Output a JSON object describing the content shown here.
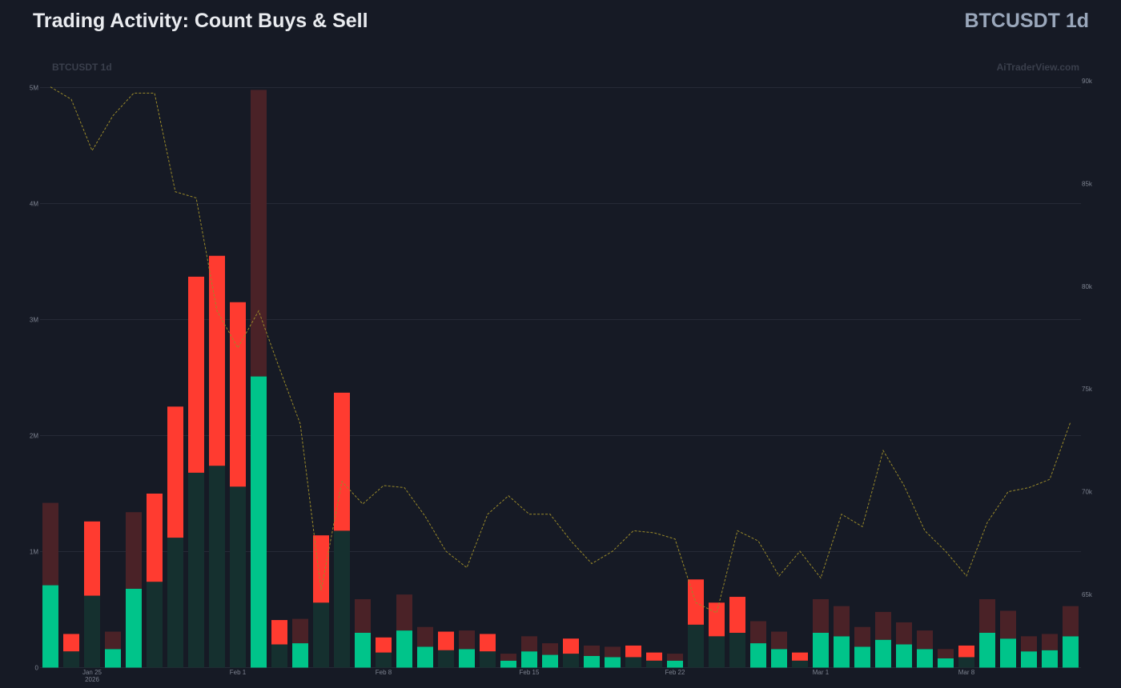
{
  "header": {
    "title": "Trading Activity: Count Buys & Sell",
    "symbol": "BTCUSDT 1d"
  },
  "watermark": {
    "symbol": "BTCUSDT 1d",
    "brand": "AiTraderView.com"
  },
  "colors": {
    "background": "#161a25",
    "grid": "#262a36",
    "buy_active": "#00c48a",
    "buy_dim": "#15302f",
    "sell_active": "#ff3b30",
    "sell_dim": "#4a2227",
    "price_line": "#9a8a2a"
  },
  "chart_data": {
    "type": "bar",
    "stacked": true,
    "x_tick_labels": [
      {
        "label": "Jan 25",
        "sublabel": "2026",
        "index": 2
      },
      {
        "label": "Feb 1",
        "sublabel": "",
        "index": 9
      },
      {
        "label": "Feb 8",
        "sublabel": "",
        "index": 16
      },
      {
        "label": "Feb 15",
        "sublabel": "",
        "index": 23
      },
      {
        "label": "Feb 22",
        "sublabel": "",
        "index": 30
      },
      {
        "label": "Mar 1",
        "sublabel": "",
        "index": 37
      },
      {
        "label": "Mar 8",
        "sublabel": "",
        "index": 44
      }
    ],
    "left_axis": {
      "ylim": [
        0,
        5000000
      ],
      "ticks": [
        {
          "v": 0,
          "label": "0"
        },
        {
          "v": 1000000,
          "label": "1M"
        },
        {
          "v": 2000000,
          "label": "2M"
        },
        {
          "v": 3000000,
          "label": "3M"
        },
        {
          "v": 4000000,
          "label": "4M"
        },
        {
          "v": 5000000,
          "label": "5M"
        }
      ]
    },
    "right_axis": {
      "ticks": [
        {
          "v": 65000,
          "label": "65k"
        },
        {
          "v": 70000,
          "label": "70k"
        },
        {
          "v": 75000,
          "label": "75k"
        },
        {
          "v": 80000,
          "label": "80k"
        },
        {
          "v": 85000,
          "label": "85k"
        },
        {
          "v": 90000,
          "label": "90k"
        }
      ]
    },
    "bars": [
      {
        "buy": 710000,
        "sell": 710000,
        "buy_active": true,
        "sell_active": false
      },
      {
        "buy": 140000,
        "sell": 150000,
        "buy_active": false,
        "sell_active": true
      },
      {
        "buy": 620000,
        "sell": 640000,
        "buy_active": false,
        "sell_active": true
      },
      {
        "buy": 160000,
        "sell": 150000,
        "buy_active": true,
        "sell_active": false
      },
      {
        "buy": 680000,
        "sell": 660000,
        "buy_active": true,
        "sell_active": false
      },
      {
        "buy": 740000,
        "sell": 760000,
        "buy_active": false,
        "sell_active": true
      },
      {
        "buy": 1120000,
        "sell": 1130000,
        "buy_active": false,
        "sell_active": true
      },
      {
        "buy": 1680000,
        "sell": 1690000,
        "buy_active": false,
        "sell_active": true
      },
      {
        "buy": 1740000,
        "sell": 1810000,
        "buy_active": false,
        "sell_active": true
      },
      {
        "buy": 1560000,
        "sell": 1590000,
        "buy_active": false,
        "sell_active": true
      },
      {
        "buy": 2510000,
        "sell": 2470000,
        "buy_active": true,
        "sell_active": false
      },
      {
        "buy": 200000,
        "sell": 210000,
        "buy_active": false,
        "sell_active": true
      },
      {
        "buy": 210000,
        "sell": 210000,
        "buy_active": true,
        "sell_active": false
      },
      {
        "buy": 560000,
        "sell": 580000,
        "buy_active": false,
        "sell_active": true
      },
      {
        "buy": 1180000,
        "sell": 1190000,
        "buy_active": false,
        "sell_active": true
      },
      {
        "buy": 300000,
        "sell": 290000,
        "buy_active": true,
        "sell_active": false
      },
      {
        "buy": 130000,
        "sell": 130000,
        "buy_active": false,
        "sell_active": true
      },
      {
        "buy": 320000,
        "sell": 310000,
        "buy_active": true,
        "sell_active": false
      },
      {
        "buy": 180000,
        "sell": 170000,
        "buy_active": true,
        "sell_active": false
      },
      {
        "buy": 150000,
        "sell": 160000,
        "buy_active": false,
        "sell_active": true
      },
      {
        "buy": 160000,
        "sell": 160000,
        "buy_active": true,
        "sell_active": false
      },
      {
        "buy": 140000,
        "sell": 150000,
        "buy_active": false,
        "sell_active": true
      },
      {
        "buy": 60000,
        "sell": 60000,
        "buy_active": true,
        "sell_active": false
      },
      {
        "buy": 140000,
        "sell": 130000,
        "buy_active": true,
        "sell_active": false
      },
      {
        "buy": 110000,
        "sell": 100000,
        "buy_active": true,
        "sell_active": false
      },
      {
        "buy": 120000,
        "sell": 130000,
        "buy_active": false,
        "sell_active": true
      },
      {
        "buy": 100000,
        "sell": 90000,
        "buy_active": true,
        "sell_active": false
      },
      {
        "buy": 90000,
        "sell": 90000,
        "buy_active": true,
        "sell_active": false
      },
      {
        "buy": 90000,
        "sell": 100000,
        "buy_active": false,
        "sell_active": true
      },
      {
        "buy": 60000,
        "sell": 70000,
        "buy_active": false,
        "sell_active": true
      },
      {
        "buy": 60000,
        "sell": 60000,
        "buy_active": true,
        "sell_active": false
      },
      {
        "buy": 370000,
        "sell": 390000,
        "buy_active": false,
        "sell_active": true
      },
      {
        "buy": 270000,
        "sell": 290000,
        "buy_active": false,
        "sell_active": true
      },
      {
        "buy": 300000,
        "sell": 310000,
        "buy_active": false,
        "sell_active": true
      },
      {
        "buy": 210000,
        "sell": 190000,
        "buy_active": true,
        "sell_active": false
      },
      {
        "buy": 160000,
        "sell": 150000,
        "buy_active": true,
        "sell_active": false
      },
      {
        "buy": 60000,
        "sell": 70000,
        "buy_active": false,
        "sell_active": true
      },
      {
        "buy": 300000,
        "sell": 290000,
        "buy_active": true,
        "sell_active": false
      },
      {
        "buy": 270000,
        "sell": 260000,
        "buy_active": true,
        "sell_active": false
      },
      {
        "buy": 180000,
        "sell": 170000,
        "buy_active": true,
        "sell_active": false
      },
      {
        "buy": 240000,
        "sell": 240000,
        "buy_active": true,
        "sell_active": false
      },
      {
        "buy": 200000,
        "sell": 190000,
        "buy_active": true,
        "sell_active": false
      },
      {
        "buy": 160000,
        "sell": 160000,
        "buy_active": true,
        "sell_active": false
      },
      {
        "buy": 80000,
        "sell": 80000,
        "buy_active": true,
        "sell_active": false
      },
      {
        "buy": 90000,
        "sell": 100000,
        "buy_active": false,
        "sell_active": true
      },
      {
        "buy": 300000,
        "sell": 290000,
        "buy_active": true,
        "sell_active": false
      },
      {
        "buy": 250000,
        "sell": 240000,
        "buy_active": true,
        "sell_active": false
      },
      {
        "buy": 140000,
        "sell": 130000,
        "buy_active": true,
        "sell_active": false
      },
      {
        "buy": 150000,
        "sell": 140000,
        "buy_active": true,
        "sell_active": false
      },
      {
        "buy": 270000,
        "sell": 260000,
        "buy_active": true,
        "sell_active": false
      }
    ],
    "price_series": {
      "values": [
        89700,
        89100,
        86600,
        88300,
        89400,
        89400,
        84600,
        84300,
        78800,
        77000,
        78800,
        76000,
        73300,
        65200,
        70500,
        69400,
        70300,
        70200,
        68800,
        67100,
        66300,
        68900,
        69800,
        68900,
        68900,
        67600,
        66500,
        67100,
        68100,
        68000,
        67700,
        64600,
        64100,
        68100,
        67600,
        65900,
        67100,
        65800,
        68900,
        68300,
        72000,
        70300,
        68100,
        67100,
        65900,
        68500,
        70000,
        70200,
        70600,
        73400
      ]
    }
  }
}
